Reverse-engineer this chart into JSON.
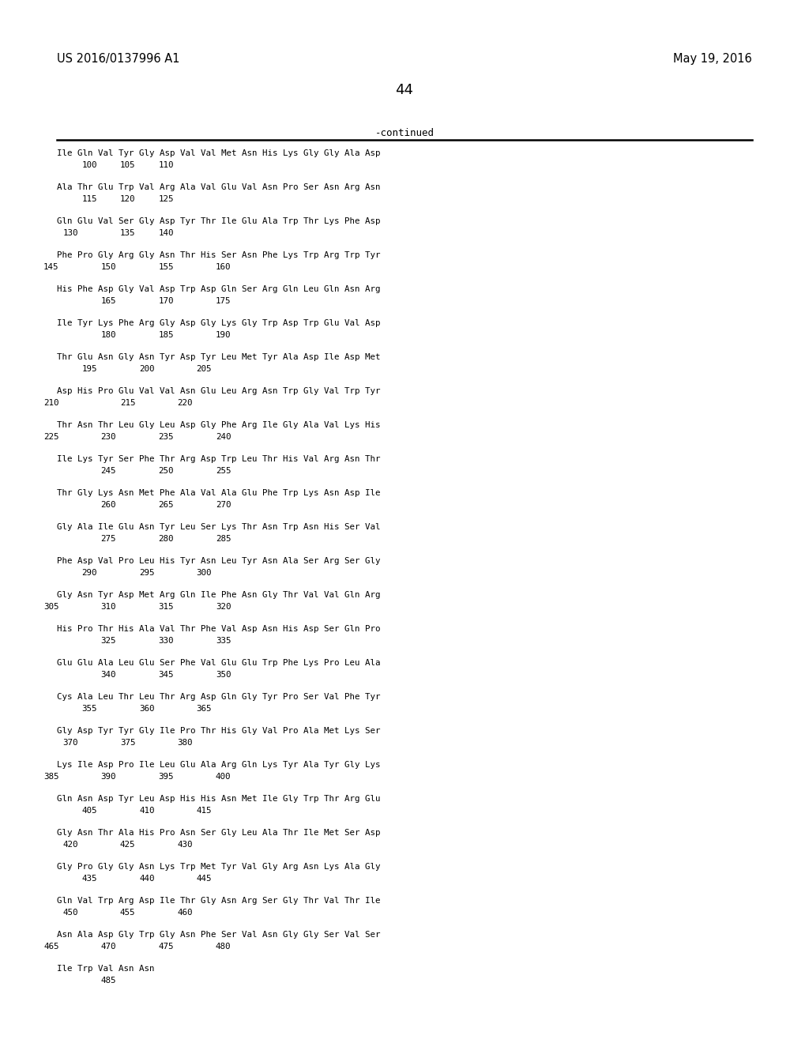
{
  "patent_number": "US 2016/0137996 A1",
  "date": "May 19, 2016",
  "page_number": "44",
  "continued_label": "-continued",
  "background_color": "#ffffff",
  "text_color": "#000000",
  "lines": [
    {
      "seq": "Ile Gln Val Tyr Gly Asp Val Val Met Asn His Lys Gly Gly Ala Asp",
      "nums": [
        "100",
        "105",
        "110"
      ],
      "num_indent": [
        1,
        3,
        5
      ]
    },
    {
      "seq": "Ala Thr Glu Trp Val Arg Ala Val Glu Val Asn Pro Ser Asn Arg Asn",
      "nums": [
        "115",
        "120",
        "125"
      ],
      "num_indent": [
        1,
        3,
        5
      ]
    },
    {
      "seq": "Gln Glu Val Ser Gly Asp Tyr Thr Ile Glu Ala Trp Thr Lys Phe Asp",
      "nums": [
        "130",
        "135",
        "140"
      ],
      "num_indent": [
        0,
        3,
        5
      ]
    },
    {
      "seq": "Phe Pro Gly Arg Gly Asn Thr His Ser Asn Phe Lys Trp Arg Trp Tyr",
      "nums": [
        "145",
        "150",
        "155",
        "160"
      ],
      "num_indent": [
        -1,
        2,
        5,
        8
      ]
    },
    {
      "seq": "His Phe Asp Gly Val Asp Trp Asp Gln Ser Arg Gln Leu Gln Asn Arg",
      "nums": [
        "165",
        "170",
        "175"
      ],
      "num_indent": [
        2,
        5,
        8
      ]
    },
    {
      "seq": "Ile Tyr Lys Phe Arg Gly Asp Gly Lys Gly Trp Asp Trp Glu Val Asp",
      "nums": [
        "180",
        "185",
        "190"
      ],
      "num_indent": [
        2,
        5,
        8
      ]
    },
    {
      "seq": "Thr Glu Asn Gly Asn Tyr Asp Tyr Leu Met Tyr Ala Asp Ile Asp Met",
      "nums": [
        "195",
        "200",
        "205"
      ],
      "num_indent": [
        1,
        4,
        7
      ]
    },
    {
      "seq": "Asp His Pro Glu Val Val Asn Glu Leu Arg Asn Trp Gly Val Trp Tyr",
      "nums": [
        "210",
        "215",
        "220"
      ],
      "num_indent": [
        -1,
        3,
        6
      ]
    },
    {
      "seq": "Thr Asn Thr Leu Gly Leu Asp Gly Phe Arg Ile Gly Ala Val Lys His",
      "nums": [
        "225",
        "230",
        "235",
        "240"
      ],
      "num_indent": [
        -1,
        2,
        5,
        8
      ]
    },
    {
      "seq": "Ile Lys Tyr Ser Phe Thr Arg Asp Trp Leu Thr His Val Arg Asn Thr",
      "nums": [
        "245",
        "250",
        "255"
      ],
      "num_indent": [
        2,
        5,
        8
      ]
    },
    {
      "seq": "Thr Gly Lys Asn Met Phe Ala Val Ala Glu Phe Trp Lys Asn Asp Ile",
      "nums": [
        "260",
        "265",
        "270"
      ],
      "num_indent": [
        2,
        5,
        8
      ]
    },
    {
      "seq": "Gly Ala Ile Glu Asn Tyr Leu Ser Lys Thr Asn Trp Asn His Ser Val",
      "nums": [
        "275",
        "280",
        "285"
      ],
      "num_indent": [
        2,
        5,
        8
      ]
    },
    {
      "seq": "Phe Asp Val Pro Leu His Tyr Asn Leu Tyr Asn Ala Ser Arg Ser Gly",
      "nums": [
        "290",
        "295",
        "300"
      ],
      "num_indent": [
        1,
        4,
        7
      ]
    },
    {
      "seq": "Gly Asn Tyr Asp Met Arg Gln Ile Phe Asn Gly Thr Val Val Gln Arg",
      "nums": [
        "305",
        "310",
        "315",
        "320"
      ],
      "num_indent": [
        -1,
        2,
        5,
        8
      ]
    },
    {
      "seq": "His Pro Thr His Ala Val Thr Phe Val Asp Asn His Asp Ser Gln Pro",
      "nums": [
        "325",
        "330",
        "335"
      ],
      "num_indent": [
        2,
        5,
        8
      ]
    },
    {
      "seq": "Glu Glu Ala Leu Glu Ser Phe Val Glu Glu Trp Phe Lys Pro Leu Ala",
      "nums": [
        "340",
        "345",
        "350"
      ],
      "num_indent": [
        2,
        5,
        8
      ]
    },
    {
      "seq": "Cys Ala Leu Thr Leu Thr Arg Asp Gln Gly Tyr Pro Ser Val Phe Tyr",
      "nums": [
        "355",
        "360",
        "365"
      ],
      "num_indent": [
        1,
        4,
        7
      ]
    },
    {
      "seq": "Gly Asp Tyr Tyr Gly Ile Pro Thr His Gly Val Pro Ala Met Lys Ser",
      "nums": [
        "370",
        "375",
        "380"
      ],
      "num_indent": [
        0,
        3,
        6
      ]
    },
    {
      "seq": "Lys Ile Asp Pro Ile Leu Glu Ala Arg Gln Lys Tyr Ala Tyr Gly Lys",
      "nums": [
        "385",
        "390",
        "395",
        "400"
      ],
      "num_indent": [
        -1,
        2,
        5,
        8
      ]
    },
    {
      "seq": "Gln Asn Asp Tyr Leu Asp His His Asn Met Ile Gly Trp Thr Arg Glu",
      "nums": [
        "405",
        "410",
        "415"
      ],
      "num_indent": [
        1,
        4,
        7
      ]
    },
    {
      "seq": "Gly Asn Thr Ala His Pro Asn Ser Gly Leu Ala Thr Ile Met Ser Asp",
      "nums": [
        "420",
        "425",
        "430"
      ],
      "num_indent": [
        0,
        3,
        6
      ]
    },
    {
      "seq": "Gly Pro Gly Gly Asn Lys Trp Met Tyr Val Gly Arg Asn Lys Ala Gly",
      "nums": [
        "435",
        "440",
        "445"
      ],
      "num_indent": [
        1,
        4,
        7
      ]
    },
    {
      "seq": "Gln Val Trp Arg Asp Ile Thr Gly Asn Arg Ser Gly Thr Val Thr Ile",
      "nums": [
        "450",
        "455",
        "460"
      ],
      "num_indent": [
        0,
        3,
        6
      ]
    },
    {
      "seq": "Asn Ala Asp Gly Trp Gly Asn Phe Ser Val Asn Gly Gly Ser Val Ser",
      "nums": [
        "465",
        "470",
        "475",
        "480"
      ],
      "num_indent": [
        -1,
        2,
        5,
        8
      ]
    },
    {
      "seq": "Ile Trp Val Asn Asn",
      "nums": [
        "485"
      ],
      "num_indent": [
        2
      ]
    }
  ]
}
